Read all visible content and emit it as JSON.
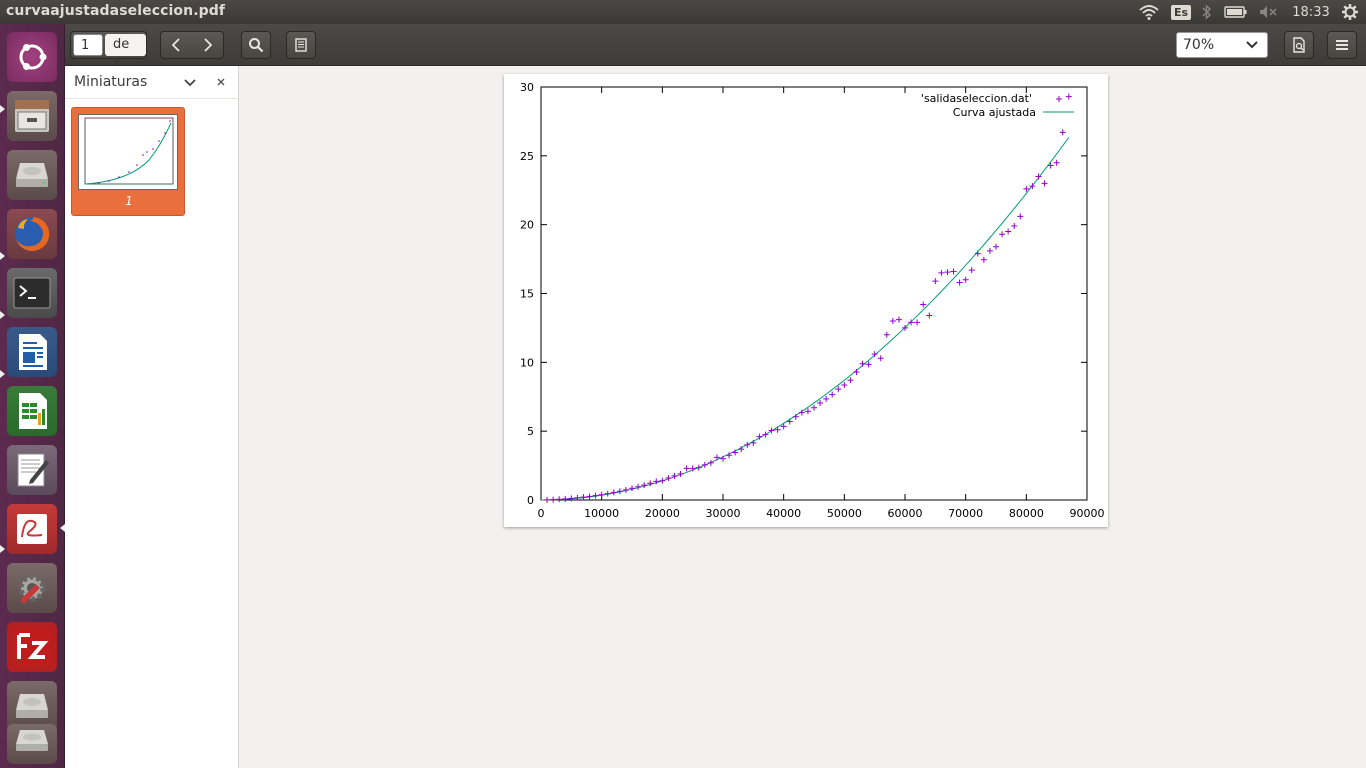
{
  "window": {
    "title": "curvaajustadaseleccion.pdf"
  },
  "tray": {
    "keyboard": "Es",
    "clock": "18:33"
  },
  "launcher": {
    "items": [
      {
        "name": "ubuntu-dash-icon"
      },
      {
        "name": "files-icon"
      },
      {
        "name": "drive-icon"
      },
      {
        "name": "firefox-icon"
      },
      {
        "name": "terminal-icon"
      },
      {
        "name": "writer-icon"
      },
      {
        "name": "calc-icon"
      },
      {
        "name": "text-editor-icon"
      },
      {
        "name": "document-viewer-icon"
      },
      {
        "name": "system-settings-icon"
      },
      {
        "name": "filezilla-icon"
      },
      {
        "name": "drive-icon"
      },
      {
        "name": "drive-icon"
      }
    ]
  },
  "toolbar": {
    "page_value": "1",
    "page_of": "de 1",
    "zoom": "70%"
  },
  "sidebar": {
    "title": "Miniaturas",
    "thumb_label": "1"
  },
  "chart_data": {
    "type": "scatter",
    "xlim": [
      0,
      90000
    ],
    "ylim": [
      0,
      30
    ],
    "x_ticks": [
      0,
      10000,
      20000,
      30000,
      40000,
      50000,
      60000,
      70000,
      80000,
      90000
    ],
    "x_tick_labels": [
      "0",
      "10000",
      "20000",
      "30000",
      "40000",
      "50000",
      "60000",
      "70000",
      "80000",
      "90000"
    ],
    "y_ticks": [
      0,
      5,
      10,
      15,
      20,
      25,
      30
    ],
    "y_tick_labels": [
      "0",
      "5",
      "10",
      "15",
      "20",
      "25",
      "30"
    ],
    "legend_position": "top-right",
    "series": [
      {
        "name": "'salidaseleccion.dat'",
        "style": "points",
        "color": "#9400d3",
        "points": [
          [
            1000,
            0.01
          ],
          [
            2000,
            0.03
          ],
          [
            3000,
            0.05
          ],
          [
            4000,
            0.08
          ],
          [
            5000,
            0.12
          ],
          [
            6000,
            0.16
          ],
          [
            7000,
            0.21
          ],
          [
            8000,
            0.26
          ],
          [
            9000,
            0.32
          ],
          [
            10000,
            0.38
          ],
          [
            11000,
            0.46
          ],
          [
            12000,
            0.55
          ],
          [
            13000,
            0.64
          ],
          [
            14000,
            0.74
          ],
          [
            15000,
            0.85
          ],
          [
            16000,
            0.96
          ],
          [
            17000,
            1.08
          ],
          [
            18000,
            1.22
          ],
          [
            19000,
            1.35
          ],
          [
            20000,
            1.4
          ],
          [
            21000,
            1.6
          ],
          [
            22000,
            1.75
          ],
          [
            23000,
            1.9
          ],
          [
            24000,
            2.3
          ],
          [
            25000,
            2.3
          ],
          [
            26000,
            2.35
          ],
          [
            27000,
            2.55
          ],
          [
            28000,
            2.7
          ],
          [
            29000,
            3.1
          ],
          [
            30000,
            3.0
          ],
          [
            31000,
            3.25
          ],
          [
            32000,
            3.45
          ],
          [
            33000,
            3.7
          ],
          [
            34000,
            4.0
          ],
          [
            35000,
            4.15
          ],
          [
            36000,
            4.6
          ],
          [
            37000,
            4.75
          ],
          [
            38000,
            5.05
          ],
          [
            39000,
            5.1
          ],
          [
            40000,
            5.35
          ],
          [
            41000,
            5.7
          ],
          [
            42000,
            6.05
          ],
          [
            43000,
            6.35
          ],
          [
            44000,
            6.45
          ],
          [
            45000,
            6.7
          ],
          [
            46000,
            7.05
          ],
          [
            47000,
            7.35
          ],
          [
            48000,
            7.65
          ],
          [
            49000,
            8.05
          ],
          [
            50000,
            8.35
          ],
          [
            51000,
            8.7
          ],
          [
            52000,
            9.3
          ],
          [
            53000,
            9.9
          ],
          [
            54000,
            9.85
          ],
          [
            55000,
            10.6
          ],
          [
            56000,
            10.3
          ],
          [
            57000,
            12.0
          ],
          [
            58000,
            13.0
          ],
          [
            59000,
            13.1
          ],
          [
            60000,
            12.5
          ],
          [
            61000,
            12.9
          ],
          [
            62000,
            12.9
          ],
          [
            63000,
            14.2
          ],
          [
            64000,
            13.4
          ],
          [
            65000,
            15.9
          ],
          [
            66000,
            16.5
          ],
          [
            67000,
            16.55
          ],
          [
            68000,
            16.6
          ],
          [
            69000,
            15.8
          ],
          [
            70000,
            16.0
          ],
          [
            71000,
            16.7
          ],
          [
            72000,
            17.9
          ],
          [
            73000,
            17.45
          ],
          [
            74000,
            18.1
          ],
          [
            75000,
            18.4
          ],
          [
            76000,
            19.3
          ],
          [
            77000,
            19.5
          ],
          [
            78000,
            19.9
          ],
          [
            79000,
            20.6
          ],
          [
            80000,
            22.6
          ],
          [
            81000,
            22.8
          ],
          [
            82000,
            23.5
          ],
          [
            83000,
            23.0
          ],
          [
            84000,
            24.3
          ],
          [
            85000,
            24.5
          ],
          [
            86000,
            26.7
          ],
          [
            87000,
            29.3
          ]
        ]
      },
      {
        "name": "Curva ajustada",
        "style": "line",
        "color": "#009e73",
        "a": 3.48e-09,
        "exponent": 2,
        "x_range": [
          0,
          87000
        ]
      }
    ]
  }
}
